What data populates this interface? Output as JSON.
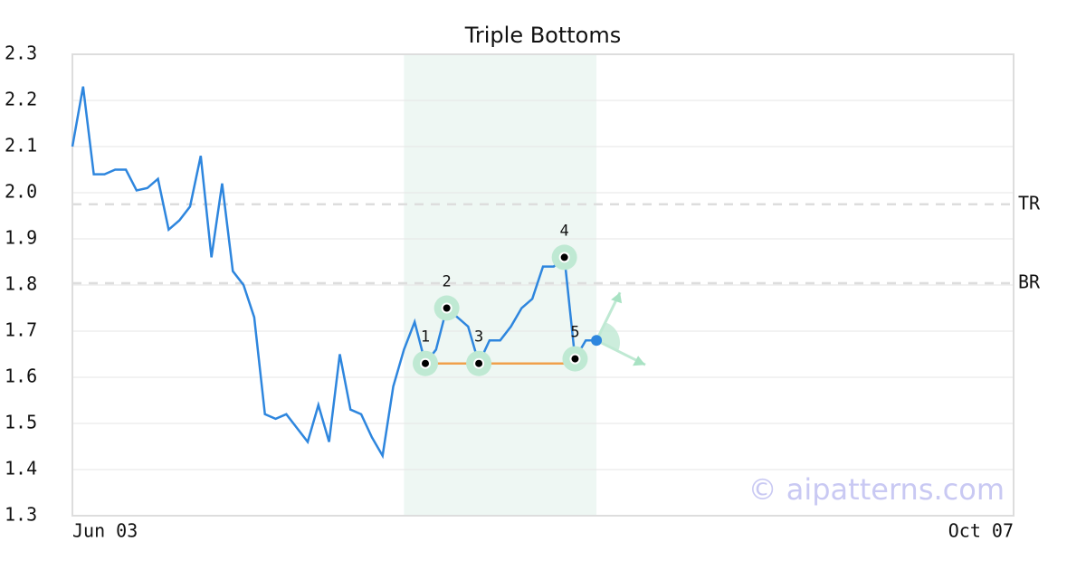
{
  "chart_data": {
    "type": "line",
    "title": "Triple Bottoms",
    "x": [
      0,
      1,
      2,
      3,
      4,
      5,
      6,
      7,
      8,
      9,
      10,
      11,
      12,
      13,
      14,
      15,
      16,
      17,
      18,
      19,
      20,
      21,
      22,
      23,
      24,
      25,
      26,
      27,
      28,
      29,
      30,
      31,
      32,
      33,
      34,
      35,
      36,
      37,
      38,
      39,
      40,
      41,
      42,
      43,
      44,
      45,
      46,
      47,
      48,
      49
    ],
    "values": [
      2.1,
      2.23,
      2.04,
      2.04,
      2.05,
      2.05,
      2.005,
      2.01,
      2.03,
      1.92,
      1.94,
      1.97,
      2.08,
      1.86,
      2.02,
      1.83,
      1.8,
      1.73,
      1.52,
      1.51,
      1.52,
      1.49,
      1.46,
      1.54,
      1.46,
      1.65,
      1.53,
      1.52,
      1.47,
      1.43,
      1.58,
      1.66,
      1.72,
      1.63,
      1.66,
      1.75,
      1.73,
      1.71,
      1.63,
      1.68,
      1.68,
      1.71,
      1.75,
      1.77,
      1.84,
      1.84,
      1.86,
      1.64,
      1.68,
      1.68
    ],
    "color": "#2e86de",
    "xlim": [
      0,
      88
    ],
    "xticks": [
      {
        "value": 0,
        "label": "Jun 03"
      },
      {
        "value": 88,
        "label": "Oct 07"
      }
    ],
    "ylim": [
      1.3,
      2.3
    ],
    "yticks": [
      1.3,
      1.4,
      1.5,
      1.6,
      1.7,
      1.8,
      1.9,
      {
        "value": 2,
        "label": "2.0"
      },
      2.1,
      2.2,
      2.3
    ],
    "grid": true,
    "highlight": [
      31,
      49
    ],
    "levels": [
      {
        "label": "TR",
        "value": 1.975
      },
      {
        "label": "BR",
        "value": 1.804
      }
    ],
    "pattern_points": {
      "labels": [
        "1",
        "2",
        "3",
        "4",
        "5"
      ],
      "x": [
        33,
        35,
        38,
        46,
        47
      ],
      "values": [
        1.63,
        1.75,
        1.63,
        1.86,
        1.64
      ]
    },
    "watermark": "© aipatterns.com"
  }
}
